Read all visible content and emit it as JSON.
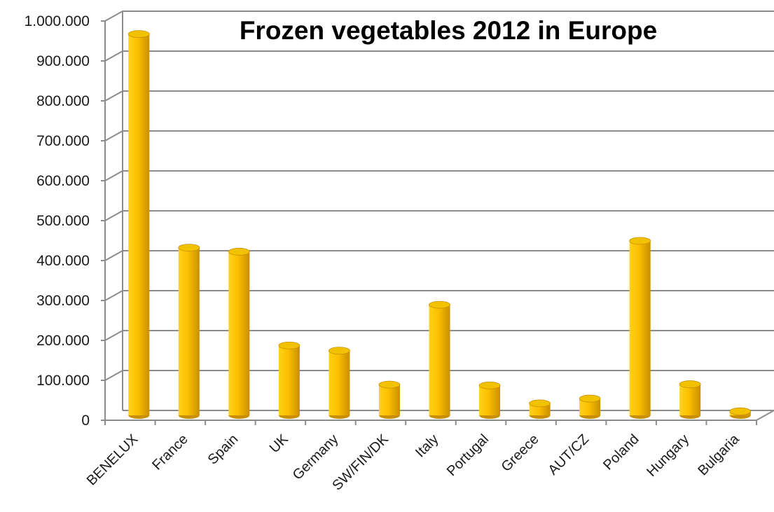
{
  "chart_data": {
    "type": "bar",
    "title": "Frozen vegetables 2012 in Europe",
    "xlabel": "",
    "ylabel": "",
    "ylim": [
      0,
      1000000
    ],
    "yticks": [
      0,
      100000,
      200000,
      300000,
      400000,
      500000,
      600000,
      700000,
      800000,
      900000,
      1000000
    ],
    "ytick_labels": [
      "0",
      "100.000",
      "200.000",
      "300.000",
      "400.000",
      "500.000",
      "600.000",
      "700.000",
      "800.000",
      "900.000",
      "1.000.000"
    ],
    "categories": [
      "BENELUX",
      "France",
      "Spain",
      "UK",
      "Germany",
      "SW/FIN/DK",
      "Italy",
      "Portugal",
      "Greece",
      "AUT/CZ",
      "Poland",
      "Hungary",
      "Bulgaria"
    ],
    "values": [
      955000,
      420000,
      410000,
      175000,
      162000,
      77000,
      277000,
      75000,
      30000,
      42000,
      437000,
      78000,
      10000
    ],
    "grid": true,
    "legend": "none",
    "colors": {
      "bar_light": "#ffd21a",
      "bar_main": "#fbbf00",
      "bar_dark": "#c98f00",
      "bar_top": "#f2c200",
      "gridline": "#8c8c8c"
    }
  }
}
